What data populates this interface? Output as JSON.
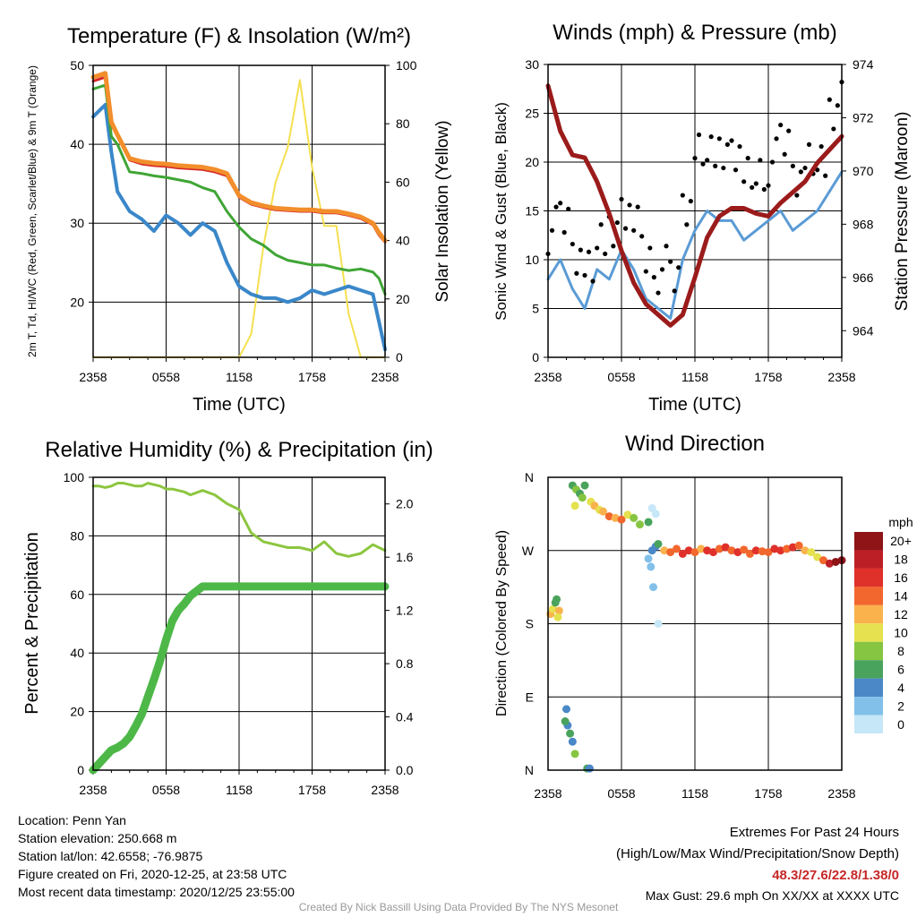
{
  "x_ticks": [
    "2358",
    "0558",
    "1158",
    "1758",
    "2358"
  ],
  "chart_data": [
    {
      "type": "line",
      "title": "Temperature (F) & Insolation (W/m²)",
      "xlabel": "Time (UTC)",
      "ylabel": "2m T, Td, HI/WC (Red, Green, Scarlet/Blue) & 9m T (Orange)",
      "y2label": "Solar Insolation (Yellow)",
      "ylim": [
        13,
        50
      ],
      "y2lim": [
        0,
        100
      ],
      "yticks": [
        20,
        30,
        40,
        50
      ],
      "y2ticks": [
        0,
        20,
        40,
        60,
        80,
        100
      ],
      "x_hours": [
        0,
        1,
        1.5,
        2,
        3,
        4,
        5,
        6,
        7,
        8,
        9,
        10,
        11,
        12,
        13,
        14,
        15,
        16,
        17,
        18,
        19,
        20,
        21,
        22,
        23,
        23.5,
        24
      ],
      "series": [
        {
          "name": "9m T",
          "color": "#f28e2b",
          "axis": "left",
          "width": 5,
          "values": [
            48.5,
            49.0,
            42.8,
            41.2,
            38.2,
            37.8,
            37.6,
            37.5,
            37.3,
            37.2,
            37.1,
            36.8,
            36.3,
            33.5,
            32.6,
            32.2,
            31.9,
            31.8,
            31.7,
            31.7,
            31.5,
            31.5,
            31.2,
            30.8,
            30.0,
            28.8,
            27.8
          ]
        },
        {
          "name": "2m T",
          "color": "#d62728",
          "axis": "left",
          "width": 3,
          "values": [
            48.0,
            48.5,
            42.5,
            41.0,
            38.0,
            37.5,
            37.3,
            37.2,
            37.0,
            36.9,
            36.8,
            36.5,
            36.0,
            33.3,
            32.4,
            32.0,
            31.7,
            31.6,
            31.5,
            31.5,
            31.3,
            31.3,
            31.0,
            30.6,
            29.8,
            28.5,
            27.6
          ]
        },
        {
          "name": "Td",
          "color": "#3fa535",
          "axis": "left",
          "width": 3,
          "values": [
            47.0,
            47.5,
            41.0,
            40.0,
            36.5,
            36.3,
            36.0,
            35.8,
            35.5,
            35.2,
            34.5,
            34.0,
            31.5,
            29.5,
            28.0,
            27.2,
            26.0,
            25.3,
            25.0,
            24.7,
            24.7,
            24.3,
            24.0,
            24.2,
            23.8,
            23.0,
            21.0
          ]
        },
        {
          "name": "HI/WC",
          "color": "#3a87c9",
          "axis": "left",
          "width": 4,
          "values": [
            43.5,
            45.0,
            39.0,
            34.0,
            31.5,
            30.5,
            29.0,
            31.0,
            30.0,
            28.5,
            30.0,
            29.0,
            25.0,
            22.0,
            21.0,
            20.5,
            20.5,
            20.0,
            20.5,
            21.5,
            21.0,
            21.5,
            22.0,
            21.5,
            21.0,
            17.5,
            14.0
          ]
        },
        {
          "name": "Solar Insolation",
          "color": "#f5e050",
          "axis": "right",
          "width": 2,
          "values": [
            0,
            0,
            0,
            0,
            0,
            0,
            0,
            0,
            0,
            0,
            0,
            0,
            0,
            0,
            8,
            38,
            60,
            72,
            95,
            65,
            45,
            45,
            15,
            0,
            0,
            0,
            0
          ]
        }
      ]
    },
    {
      "type": "line",
      "title": "Winds (mph) & Pressure (mb)",
      "xlabel": "Time (UTC)",
      "ylabel": "Sonic Wind & Gust (Blue, Black)",
      "y2label": "Station Pressure (Maroon)",
      "ylim": [
        0,
        30
      ],
      "y2lim": [
        963,
        974
      ],
      "yticks": [
        0,
        5,
        10,
        15,
        20,
        25,
        30
      ],
      "y2ticks": [
        964,
        966,
        968,
        970,
        972,
        974
      ],
      "x_hours": [
        0,
        1,
        2,
        3,
        4,
        5,
        6,
        7,
        8,
        9,
        10,
        11,
        12,
        13,
        14,
        15,
        16,
        17,
        18,
        19,
        20,
        21,
        22,
        23,
        24
      ],
      "series": [
        {
          "name": "Sonic Wind",
          "color": "#5a9bd5",
          "axis": "left",
          "width": 3,
          "style": "line",
          "values": [
            8,
            10,
            7,
            5,
            9,
            8,
            11,
            9,
            6,
            5,
            4,
            10,
            13,
            15,
            14,
            14,
            12,
            13,
            14,
            15,
            13,
            14,
            15,
            17,
            19
          ]
        },
        {
          "name": "Gust",
          "color": "#000000",
          "axis": "left",
          "style": "points",
          "values": [
            13,
            14,
            11,
            9,
            13,
            12,
            15,
            13,
            10,
            9,
            8,
            16,
            21,
            22,
            20,
            21,
            18,
            19,
            20,
            22,
            19,
            20,
            21,
            24,
            27
          ]
        },
        {
          "name": "Station Pressure",
          "color": "#9b1b1b",
          "axis": "right",
          "width": 5,
          "style": "line",
          "values": [
            973.2,
            971.5,
            970.6,
            970.5,
            969.6,
            968.4,
            967.0,
            965.8,
            965.0,
            964.6,
            964.2,
            964.6,
            966.0,
            967.5,
            968.3,
            968.6,
            968.6,
            968.4,
            968.3,
            968.8,
            969.2,
            969.6,
            970.3,
            970.8,
            971.3
          ]
        }
      ]
    },
    {
      "type": "line",
      "title": "Relative Humidity (%) & Precipitation (in)",
      "xlabel": "",
      "ylabel": "Percent & Precipitation",
      "ylim": [
        0,
        100
      ],
      "y2lim": [
        0,
        2.2
      ],
      "yticks": [
        0,
        20,
        40,
        60,
        80,
        100
      ],
      "y2ticks": [
        0.0,
        0.4,
        0.8,
        1.2,
        1.6,
        2.0
      ],
      "x_hours": [
        0,
        0.5,
        1,
        1.5,
        2,
        2.5,
        3,
        3.5,
        4,
        4.5,
        5,
        5.5,
        6,
        6.5,
        7,
        7.5,
        8,
        9,
        10,
        11,
        12,
        13,
        14,
        15,
        16,
        17,
        18,
        19,
        20,
        21,
        22,
        23,
        24
      ],
      "series": [
        {
          "name": "Relative Humidity",
          "color": "#8cc63f",
          "axis": "left",
          "width": 3,
          "values": [
            97,
            97,
            96.5,
            97,
            98,
            98,
            97.5,
            97,
            97,
            98,
            97.5,
            97,
            96,
            96,
            95.5,
            95,
            94,
            95.5,
            94,
            91,
            89,
            81,
            78,
            77,
            76,
            76,
            75,
            78,
            74,
            73,
            74,
            77,
            75
          ]
        },
        {
          "name": "Precipitation",
          "color": "#4db848",
          "axis": "right",
          "width": 9,
          "values": [
            0.0,
            0.05,
            0.1,
            0.15,
            0.17,
            0.2,
            0.25,
            0.33,
            0.42,
            0.55,
            0.68,
            0.82,
            0.98,
            1.12,
            1.2,
            1.25,
            1.31,
            1.38,
            1.38,
            1.38,
            1.38,
            1.38,
            1.38,
            1.38,
            1.38,
            1.38,
            1.38,
            1.38,
            1.38,
            1.38,
            1.38,
            1.38,
            1.38
          ]
        }
      ]
    },
    {
      "type": "scatter",
      "title": "Wind Direction",
      "xlabel": "",
      "ylabel": "Direction (Colored By Speed)",
      "ylim": [
        0,
        360
      ],
      "yticks_labels": [
        "N",
        "E",
        "S",
        "W",
        "N"
      ],
      "colorbar_title": "mph",
      "colorbar_labels": [
        "0",
        "2",
        "4",
        "6",
        "8",
        "10",
        "12",
        "14",
        "16",
        "18",
        "20+"
      ],
      "colorbar_colors": [
        "#c6e7f7",
        "#82c0ea",
        "#4a88c7",
        "#4aa35d",
        "#86c541",
        "#e5e14f",
        "#f9b24c",
        "#f2672d",
        "#e0302a",
        "#bd1f26",
        "#8e1417"
      ],
      "points": [
        {
          "x": 0.2,
          "dir": 192,
          "spd": 12
        },
        {
          "x": 0.4,
          "dir": 198,
          "spd": 10
        },
        {
          "x": 0.6,
          "dir": 206,
          "spd": 7
        },
        {
          "x": 0.9,
          "dir": 196,
          "spd": 12
        },
        {
          "x": 0.8,
          "dir": 188,
          "spd": 11
        },
        {
          "x": 0.7,
          "dir": 210,
          "spd": 6
        },
        {
          "x": 1.5,
          "dir": 75,
          "spd": 4
        },
        {
          "x": 1.6,
          "dir": 55,
          "spd": 5
        },
        {
          "x": 1.8,
          "dir": 45,
          "spd": 7
        },
        {
          "x": 1.4,
          "dir": 60,
          "spd": 6
        },
        {
          "x": 2.0,
          "dir": 35,
          "spd": 4
        },
        {
          "x": 2.2,
          "dir": 20,
          "spd": 9
        },
        {
          "x": 3.2,
          "dir": 2,
          "spd": 6
        },
        {
          "x": 3.4,
          "dir": 2,
          "spd": 5
        },
        {
          "x": 2.0,
          "dir": 350,
          "spd": 6
        },
        {
          "x": 2.3,
          "dir": 345,
          "spd": 8
        },
        {
          "x": 2.6,
          "dir": 340,
          "spd": 7
        },
        {
          "x": 2.2,
          "dir": 325,
          "spd": 10
        },
        {
          "x": 2.8,
          "dir": 335,
          "spd": 9
        },
        {
          "x": 3.0,
          "dir": 350,
          "spd": 6
        },
        {
          "x": 3.5,
          "dir": 330,
          "spd": 11
        },
        {
          "x": 3.8,
          "dir": 325,
          "spd": 12
        },
        {
          "x": 4.2,
          "dir": 320,
          "spd": 10
        },
        {
          "x": 4.5,
          "dir": 318,
          "spd": 12
        },
        {
          "x": 5.0,
          "dir": 312,
          "spd": 14
        },
        {
          "x": 5.5,
          "dir": 310,
          "spd": 13
        },
        {
          "x": 6.0,
          "dir": 308,
          "spd": 15
        },
        {
          "x": 6.5,
          "dir": 314,
          "spd": 10
        },
        {
          "x": 7.0,
          "dir": 310,
          "spd": 9
        },
        {
          "x": 7.5,
          "dir": 302,
          "spd": 8
        },
        {
          "x": 8.2,
          "dir": 305,
          "spd": 6
        },
        {
          "x": 8.5,
          "dir": 322,
          "spd": 1
        },
        {
          "x": 8.8,
          "dir": 315,
          "spd": 1
        },
        {
          "x": 8.5,
          "dir": 270,
          "spd": 5
        },
        {
          "x": 8.2,
          "dir": 260,
          "spd": 2
        },
        {
          "x": 8.4,
          "dir": 250,
          "spd": 3
        },
        {
          "x": 8.8,
          "dir": 275,
          "spd": 4
        },
        {
          "x": 9.0,
          "dir": 278,
          "spd": 6
        },
        {
          "x": 8.6,
          "dir": 225,
          "spd": 3
        },
        {
          "x": 9.0,
          "dir": 180,
          "spd": 1
        },
        {
          "x": 9.5,
          "dir": 270,
          "spd": 12
        },
        {
          "x": 10.0,
          "dir": 268,
          "spd": 15
        },
        {
          "x": 10.5,
          "dir": 272,
          "spd": 14
        },
        {
          "x": 11.0,
          "dir": 266,
          "spd": 17
        },
        {
          "x": 11.5,
          "dir": 270,
          "spd": 16
        },
        {
          "x": 12.0,
          "dir": 268,
          "spd": 15
        },
        {
          "x": 12.5,
          "dir": 272,
          "spd": 13
        },
        {
          "x": 13.0,
          "dir": 270,
          "spd": 17
        },
        {
          "x": 13.5,
          "dir": 268,
          "spd": 16
        },
        {
          "x": 14.0,
          "dir": 272,
          "spd": 15
        },
        {
          "x": 14.5,
          "dir": 274,
          "spd": 17
        },
        {
          "x": 15.0,
          "dir": 270,
          "spd": 14
        },
        {
          "x": 15.5,
          "dir": 268,
          "spd": 16
        },
        {
          "x": 16.0,
          "dir": 271,
          "spd": 15
        },
        {
          "x": 16.5,
          "dir": 266,
          "spd": 14
        },
        {
          "x": 17.0,
          "dir": 270,
          "spd": 16
        },
        {
          "x": 17.5,
          "dir": 269,
          "spd": 15
        },
        {
          "x": 18.0,
          "dir": 268,
          "spd": 14
        },
        {
          "x": 18.5,
          "dir": 272,
          "spd": 16
        },
        {
          "x": 19.0,
          "dir": 270,
          "spd": 17
        },
        {
          "x": 19.5,
          "dir": 272,
          "spd": 15
        },
        {
          "x": 20.0,
          "dir": 274,
          "spd": 16
        },
        {
          "x": 20.5,
          "dir": 276,
          "spd": 14
        },
        {
          "x": 21.0,
          "dir": 270,
          "spd": 12
        },
        {
          "x": 21.5,
          "dir": 268,
          "spd": 10
        },
        {
          "x": 22.0,
          "dir": 262,
          "spd": 11
        },
        {
          "x": 22.5,
          "dir": 258,
          "spd": 14
        },
        {
          "x": 23.0,
          "dir": 254,
          "spd": 18
        },
        {
          "x": 23.5,
          "dir": 256,
          "spd": 20
        },
        {
          "x": 24.0,
          "dir": 258,
          "spd": 20
        }
      ]
    }
  ],
  "info": {
    "location": "Location: Penn Yan",
    "elevation": "Station elevation: 250.668 m",
    "latlon": "Station lat/lon: 42.6558; -76.9875",
    "created": "Figure created on Fri, 2020-12-25, at 23:58 UTC",
    "recent": "Most recent data timestamp: 2020/12/25 23:55:00"
  },
  "extremes": {
    "title": "Extremes For Past 24 Hours",
    "subtitle": "(High/Low/Max Wind/Precipitation/Snow Depth)",
    "values": "48.3/27.6/22.8/1.38/0",
    "gust": "Max Gust: 29.6 mph On XX/XX at XXXX UTC"
  },
  "credit": "Created By Nick Bassill Using Data Provided By The NYS Mesonet",
  "colors": {
    "extremes": "#c62828",
    "credit": "#999999"
  }
}
